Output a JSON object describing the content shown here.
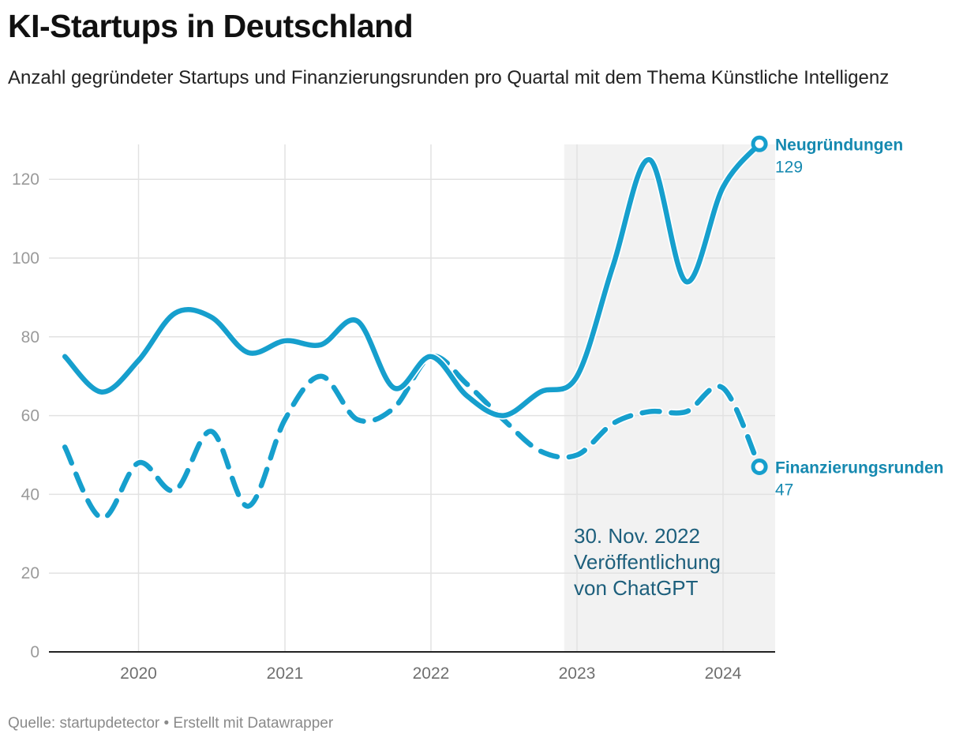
{
  "header": {
    "title": "KI-Startups in Deutschland",
    "subtitle": "Anzahl gegründeter Startups und Finanzierungsrunden pro Quartal mit dem Thema Künstliche Intelligenz"
  },
  "footer": {
    "source": "Quelle: startupdetector • Erstellt mit Datawrapper"
  },
  "colors": {
    "accent": "#169fcd",
    "label": "#1589b0",
    "annotation": "#1d5f7c",
    "highlight": "#f2f2f2",
    "grid": "#e2e2e2",
    "tick": "#9a9a9a"
  },
  "chart_data": {
    "type": "line",
    "xlabel": "",
    "ylabel": "",
    "ylim": [
      0,
      129
    ],
    "yticks": [
      0,
      20,
      40,
      60,
      80,
      100,
      120
    ],
    "xticks": [
      "2020",
      "2021",
      "2022",
      "2023",
      "2024"
    ],
    "grid": true,
    "x": [
      "2019-07-01",
      "2019-10-01",
      "2020-01-01",
      "2020-04-01",
      "2020-07-01",
      "2020-10-01",
      "2021-01-01",
      "2021-04-01",
      "2021-07-01",
      "2021-10-01",
      "2022-01-01",
      "2022-04-01",
      "2022-07-01",
      "2022-10-01",
      "2023-01-01",
      "2023-04-01",
      "2023-07-01",
      "2023-10-01",
      "2024-01-01",
      "2024-04-01"
    ],
    "series": [
      {
        "name": "Neugründungen",
        "style": "solid",
        "values": [
          75,
          66,
          74,
          86,
          85,
          76,
          79,
          78,
          84,
          67,
          75,
          65,
          60,
          66,
          70,
          98,
          125,
          94,
          118,
          129
        ]
      },
      {
        "name": "Finanzierungsrunden",
        "style": "dashed",
        "values": [
          52,
          34,
          48,
          41,
          56,
          37,
          59,
          70,
          59,
          62,
          75,
          68,
          59,
          51,
          50,
          58,
          61,
          61,
          67,
          47
        ]
      }
    ],
    "end_labels": [
      {
        "name": "Neugründungen",
        "value": "129"
      },
      {
        "name": "Finanzierungsrunden",
        "value": "47"
      }
    ],
    "highlight_range": [
      "2022-11-30",
      "2024-05-15"
    ],
    "annotation": {
      "lines": [
        "30. Nov. 2022",
        "Veröffentlichung",
        "von ChatGPT"
      ]
    }
  }
}
